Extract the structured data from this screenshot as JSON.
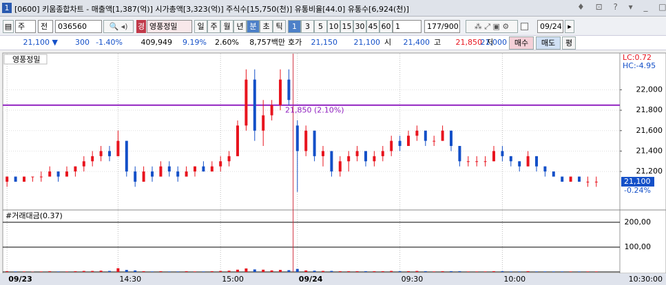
{
  "window": {
    "badge": "1",
    "title": "[0600] 키움종합차트 - 매출액[1,387(억)] 시가총액[3,323(억)] 주식수[15,750(천)] 유통비율[44.0] 유통수[6,924(천)]"
  },
  "toolbar": {
    "period_type": "주",
    "view": "전",
    "code": "036560",
    "market_badge": "경",
    "stock_name": "영풍정밀",
    "periods": [
      "일",
      "주",
      "월",
      "년",
      "분",
      "초",
      "틱"
    ],
    "intervals": [
      "1",
      "3",
      "5",
      "10",
      "15",
      "30",
      "45",
      "60"
    ],
    "interval_input": "1",
    "count": "177/900",
    "date": "09/24"
  },
  "quote": {
    "items": [
      "21,100 ▼",
      "300",
      "-1.40%",
      "409,949",
      "9.19%",
      "2.60%",
      "8,757백만",
      "호가",
      "21,150",
      "21,100",
      "시",
      "21,400",
      "고",
      "21,850",
      "저",
      "21,000"
    ],
    "buttons": [
      "매수",
      "매도",
      "평"
    ]
  },
  "chart_data": [
    {
      "type": "candlestick",
      "title": "영풍정밀",
      "up_color": "#e8141e",
      "down_color": "#1450c8",
      "categories": [
        "09/23",
        null,
        null,
        null,
        null,
        null,
        null,
        null,
        null,
        null,
        null,
        null,
        null,
        "14:30",
        null,
        null,
        null,
        null,
        null,
        null,
        null,
        null,
        null,
        null,
        null,
        "15:00",
        null,
        null,
        null,
        null,
        null,
        null,
        null,
        null,
        "09/24",
        null,
        null,
        null,
        null,
        null,
        null,
        null,
        null,
        null,
        null,
        null,
        "09:30",
        null,
        null,
        null,
        null,
        null,
        null,
        null,
        null,
        null,
        null,
        null,
        "10:00",
        null,
        null,
        null,
        null,
        null,
        null,
        null,
        null,
        null,
        null,
        null
      ],
      "open": [
        21100,
        21150,
        21100,
        21150,
        21150,
        21150,
        21200,
        21150,
        21200,
        21250,
        21300,
        21350,
        21400,
        21350,
        21500,
        21200,
        21100,
        21200,
        21150,
        21250,
        21200,
        21150,
        21200,
        21250,
        21200,
        21250,
        21300,
        21350,
        21650,
        22100,
        21600,
        21750,
        21850,
        22100,
        21650,
        21400,
        21600,
        21350,
        21400,
        21200,
        21300,
        21350,
        21400,
        21300,
        21350,
        21400,
        21500,
        21450,
        21550,
        21600,
        21500,
        21500,
        21600,
        21450,
        21300,
        21300,
        21300,
        21300,
        21400,
        21350,
        21300,
        21250,
        21350,
        21250,
        21200,
        21150,
        21100,
        21150,
        21100,
        21100
      ],
      "high": [
        21150,
        21150,
        21150,
        21150,
        21200,
        21250,
        21200,
        21250,
        21250,
        21350,
        21400,
        21450,
        21450,
        21600,
        21500,
        21250,
        21250,
        21250,
        21300,
        21300,
        21250,
        21250,
        21250,
        21300,
        21300,
        21350,
        21400,
        21700,
        22200,
        22200,
        21900,
        21900,
        22200,
        22200,
        21700,
        21650,
        21600,
        21450,
        21400,
        21350,
        21400,
        21450,
        21400,
        21400,
        21450,
        21550,
        21550,
        21600,
        21650,
        21600,
        21550,
        21650,
        21600,
        21450,
        21350,
        21350,
        21350,
        21450,
        21450,
        21350,
        21300,
        21400,
        21350,
        21250,
        21200,
        21150,
        21150,
        21150,
        21150,
        21150
      ],
      "low": [
        21050,
        21100,
        21100,
        21100,
        21100,
        21150,
        21100,
        21150,
        21150,
        21200,
        21250,
        21300,
        21300,
        21350,
        21150,
        21050,
        21100,
        21100,
        21150,
        21150,
        21100,
        21150,
        21150,
        21200,
        21200,
        21200,
        21250,
        21350,
        21600,
        21500,
        21450,
        21700,
        21800,
        21850,
        21000,
        21350,
        21300,
        21250,
        21150,
        21150,
        21200,
        21300,
        21250,
        21250,
        21300,
        21350,
        21400,
        21450,
        21500,
        21450,
        21450,
        21500,
        21400,
        21250,
        21250,
        21250,
        21250,
        21300,
        21300,
        21250,
        21200,
        21250,
        21200,
        21150,
        21150,
        21100,
        21100,
        21100,
        21050,
        21050
      ],
      "close": [
        21150,
        21100,
        21150,
        21150,
        21150,
        21200,
        21150,
        21200,
        21250,
        21300,
        21350,
        21400,
        21350,
        21500,
        21200,
        21100,
        21200,
        21150,
        21250,
        21200,
        21150,
        21200,
        21250,
        21200,
        21250,
        21300,
        21350,
        21650,
        22100,
        21600,
        21750,
        21850,
        22100,
        21900,
        21400,
        21600,
        21350,
        21400,
        21200,
        21300,
        21350,
        21400,
        21300,
        21350,
        21400,
        21500,
        21450,
        21550,
        21600,
        21500,
        21500,
        21600,
        21450,
        21300,
        21300,
        21300,
        21300,
        21400,
        21350,
        21300,
        21250,
        21350,
        21250,
        21200,
        21150,
        21100,
        21150,
        21100,
        21100,
        21100
      ],
      "ylim": [
        20830,
        22340
      ],
      "yticks": [
        {
          "value": 21200,
          "label": "21,200"
        },
        {
          "value": 21400,
          "label": "21,400"
        },
        {
          "value": 21600,
          "label": "21,600"
        },
        {
          "value": 21800,
          "label": "21,800"
        },
        {
          "value": 22000,
          "label": "22,000"
        }
      ],
      "hline": {
        "value": 21850,
        "label": "21,850 (2.10%)",
        "color": "#9020c0"
      },
      "corner_labels": [
        "LC:0.72",
        "HC:-4.95"
      ],
      "last_price": {
        "value": 21100,
        "label": "21,100"
      },
      "last_change": "-0.24%",
      "x_axis_end_label": "10:30:00"
    },
    {
      "type": "bar",
      "title": "#거래대금(0.37)",
      "values": [
        3,
        2,
        2,
        1,
        2,
        3,
        2,
        2,
        3,
        4,
        4,
        5,
        4,
        15,
        8,
        6,
        3,
        2,
        3,
        2,
        2,
        3,
        2,
        2,
        3,
        4,
        5,
        9,
        14,
        10,
        9,
        6,
        8,
        7,
        12,
        6,
        5,
        4,
        4,
        3,
        3,
        3,
        3,
        3,
        3,
        4,
        3,
        3,
        4,
        3,
        2,
        3,
        3,
        3,
        2,
        2,
        2,
        3,
        3,
        2,
        2,
        3,
        2,
        2,
        2,
        2,
        2,
        2,
        2,
        2
      ],
      "ylim": [
        0,
        247
      ],
      "yticks": [
        {
          "value": 100,
          "label": "100,00"
        },
        {
          "value": 200,
          "label": "200,00"
        }
      ]
    }
  ]
}
